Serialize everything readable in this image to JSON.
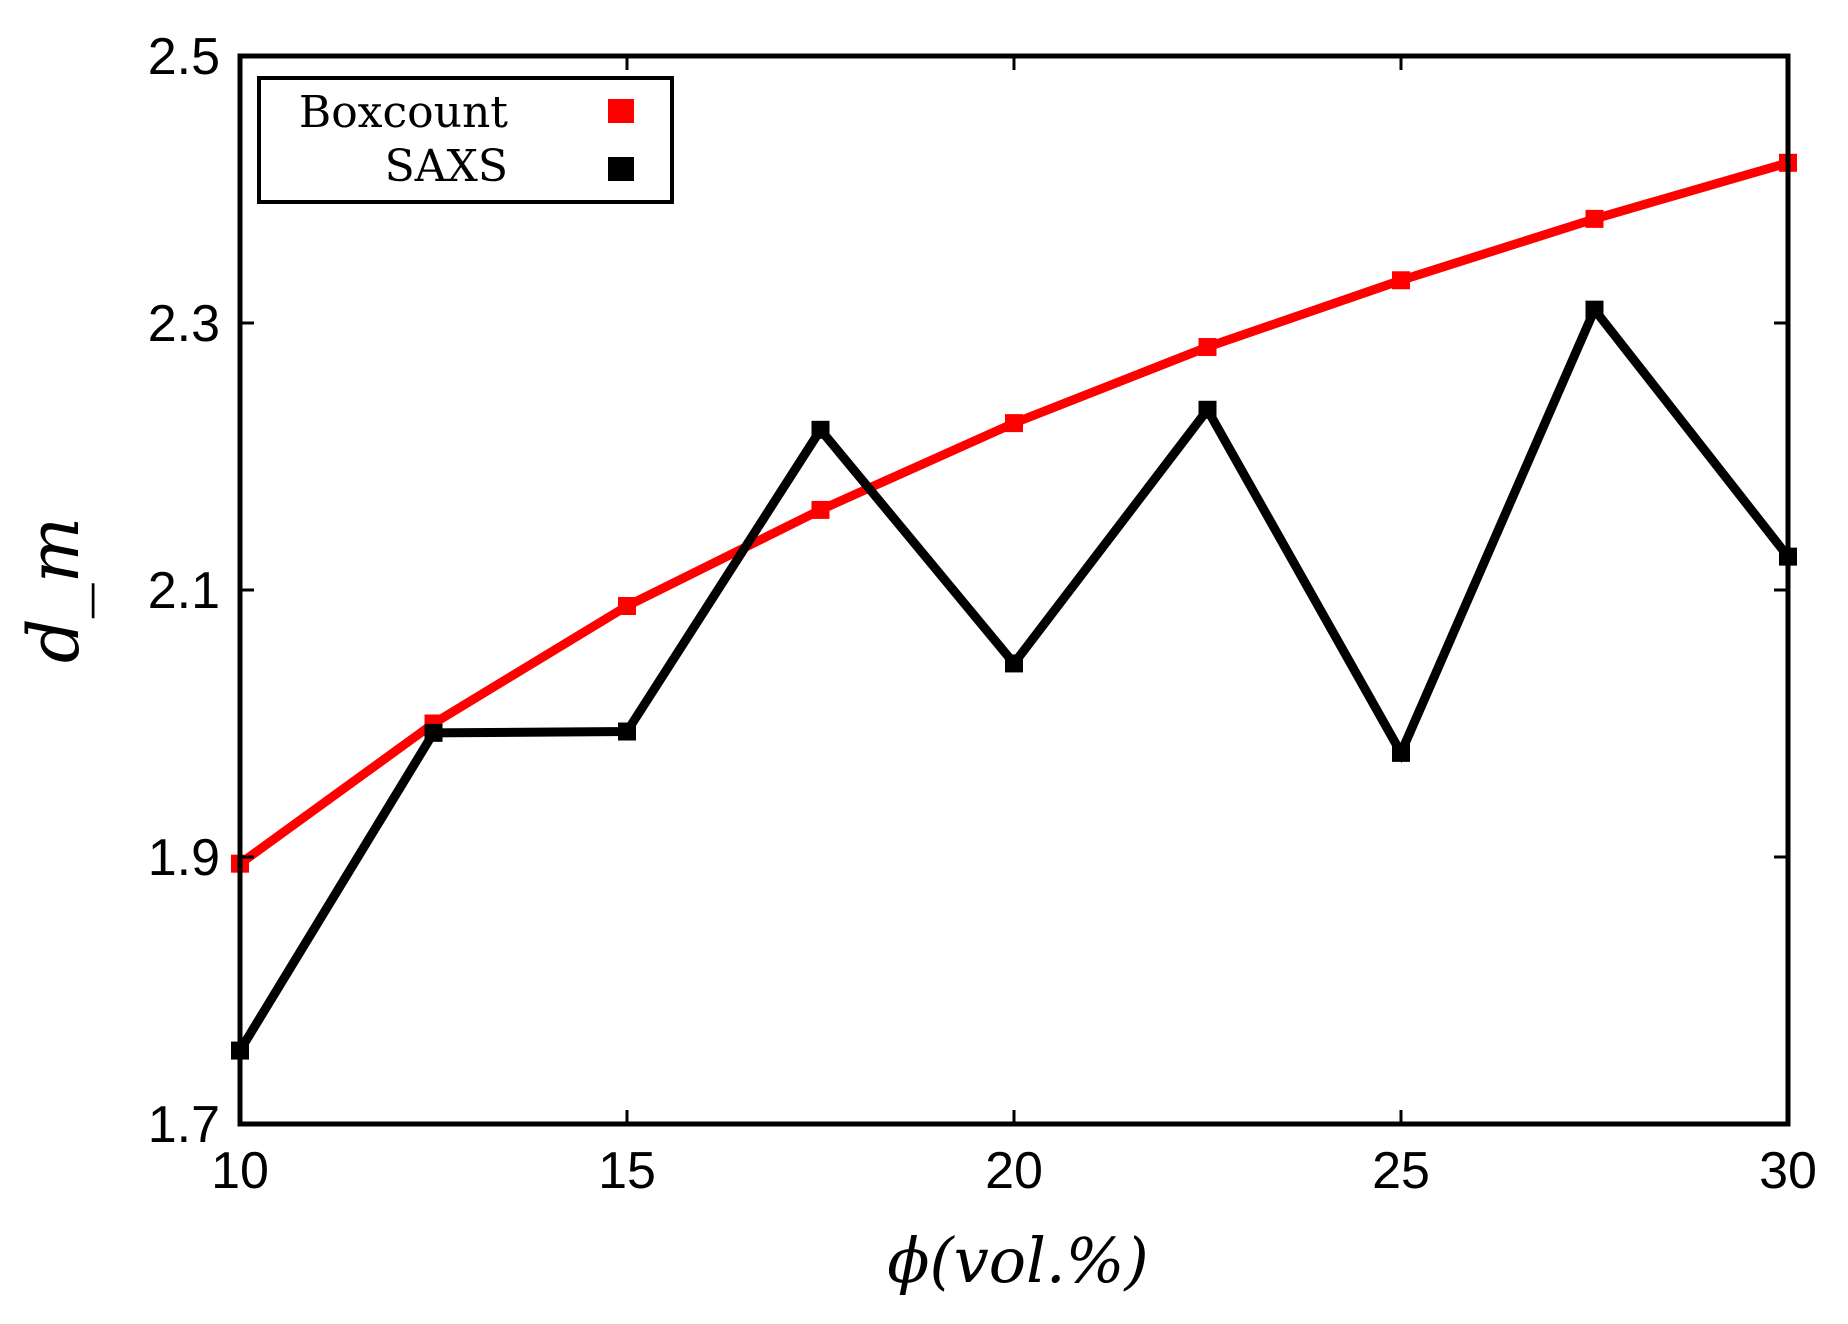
{
  "chart_data": {
    "type": "line",
    "xlabel": "ϕ(vol.%)",
    "ylabel": "d_m",
    "xlim": [
      10,
      30
    ],
    "ylim": [
      1.7,
      2.5
    ],
    "xticks": [
      10,
      15,
      20,
      25,
      30
    ],
    "xtick_labels": [
      "10",
      "15",
      "20",
      "25",
      "30"
    ],
    "yticks": [
      1.7,
      1.9,
      2.1,
      2.3,
      2.5
    ],
    "ytick_labels": [
      "1.7",
      "1.9",
      "2.1",
      "2.3",
      "2.5"
    ],
    "grid": false,
    "legend_position": "top-left",
    "x": [
      10,
      12.5,
      15,
      17.5,
      20,
      22.5,
      25,
      27.5,
      30
    ],
    "series": [
      {
        "name": "Boxcount",
        "color": "#ff0000",
        "values": [
          1.895,
          2.0,
          2.088,
          2.16,
          2.225,
          2.282,
          2.332,
          2.378,
          2.42
        ]
      },
      {
        "name": "SAXS",
        "color": "#000000",
        "values": [
          1.755,
          1.993,
          1.994,
          2.22,
          2.045,
          2.235,
          1.978,
          2.31,
          2.125
        ]
      }
    ]
  }
}
